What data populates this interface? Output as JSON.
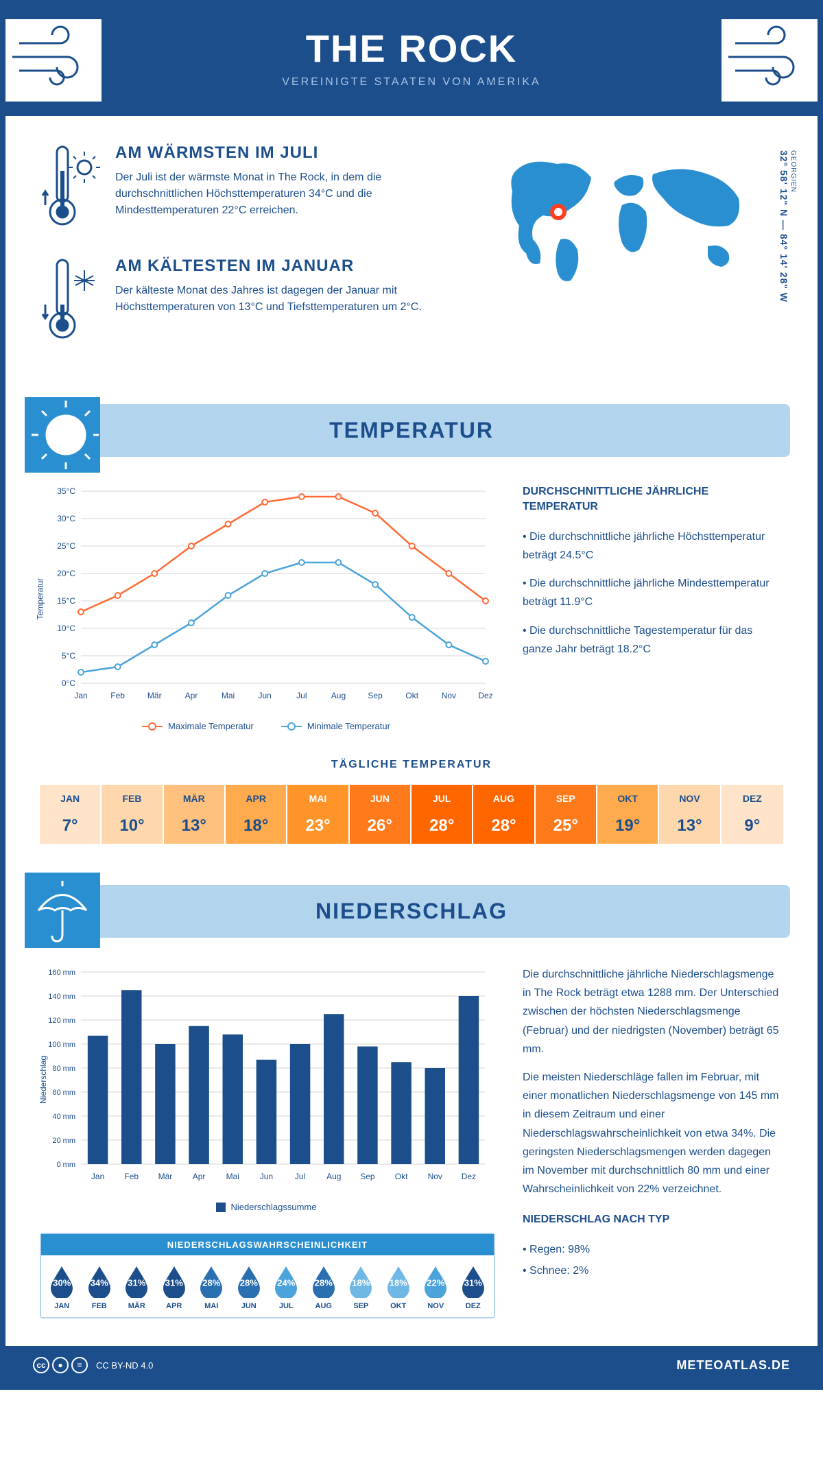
{
  "header": {
    "title": "THE ROCK",
    "subtitle": "VEREINIGTE STAATEN VON AMERIKA"
  },
  "colors": {
    "primary": "#1c4e8c",
    "light_blue": "#b3d4ed",
    "mid_blue": "#2a8fd0",
    "accent_blue": "#4ba3db",
    "orange": "#ff6b35",
    "chart_line_high": "#ff6b35",
    "chart_line_low": "#4ba3db",
    "bar": "#1c4e8c",
    "grid": "#d5d5d5"
  },
  "coords": {
    "region": "GEORGIEN",
    "text": "32° 58' 12\" N — 84° 14' 28\" W"
  },
  "facts": {
    "warm": {
      "title": "AM WÄRMSTEN IM JULI",
      "text": "Der Juli ist der wärmste Monat in The Rock, in dem die durchschnittlichen Höchsttemperaturen 34°C und die Mindesttemperaturen 22°C erreichen."
    },
    "cold": {
      "title": "AM KÄLTESTEN IM JANUAR",
      "text": "Der kälteste Monat des Jahres ist dagegen der Januar mit Höchsttemperaturen von 13°C und Tiefsttemperaturen um 2°C."
    }
  },
  "months": [
    "Jan",
    "Feb",
    "Mär",
    "Apr",
    "Mai",
    "Jun",
    "Jul",
    "Aug",
    "Sep",
    "Okt",
    "Nov",
    "Dez"
  ],
  "months_upper": [
    "JAN",
    "FEB",
    "MÄR",
    "APR",
    "MAI",
    "JUN",
    "JUL",
    "AUG",
    "SEP",
    "OKT",
    "NOV",
    "DEZ"
  ],
  "temp_section": {
    "title": "TEMPERATUR",
    "y_label": "Temperatur",
    "chart": {
      "type": "line",
      "ylim": [
        0,
        35
      ],
      "ytick_step": 5,
      "y_ticks": [
        "0°C",
        "5°C",
        "10°C",
        "15°C",
        "20°C",
        "25°C",
        "30°C",
        "35°C"
      ],
      "max": [
        13,
        16,
        20,
        25,
        29,
        33,
        34,
        34,
        31,
        25,
        20,
        15
      ],
      "min": [
        2,
        3,
        7,
        11,
        16,
        20,
        22,
        22,
        18,
        12,
        7,
        4
      ],
      "legend_max": "Maximale Temperatur",
      "legend_min": "Minimale Temperatur"
    },
    "side": {
      "title": "DURCHSCHNITTLICHE JÄHRLICHE TEMPERATUR",
      "b1": "• Die durchschnittliche jährliche Höchsttemperatur beträgt 24.5°C",
      "b2": "• Die durchschnittliche jährliche Mindesttemperatur beträgt 11.9°C",
      "b3": "• Die durchschnittliche Tagestemperatur für das ganze Jahr beträgt 18.2°C"
    },
    "daily": {
      "title": "TÄGLICHE TEMPERATUR",
      "values": [
        "7°",
        "10°",
        "13°",
        "18°",
        "23°",
        "26°",
        "28°",
        "28°",
        "25°",
        "19°",
        "13°",
        "9°"
      ],
      "bg_colors": [
        "#ffe4c9",
        "#ffd7ad",
        "#ffc17d",
        "#ffab4d",
        "#ff9429",
        "#ff7a1a",
        "#ff6600",
        "#ff6600",
        "#ff7a1a",
        "#ffab4d",
        "#ffd7ad",
        "#ffe4c9"
      ],
      "text_colors": [
        "#1c4e8c",
        "#1c4e8c",
        "#1c4e8c",
        "#1c4e8c",
        "#fff",
        "#fff",
        "#fff",
        "#fff",
        "#fff",
        "#1c4e8c",
        "#1c4e8c",
        "#1c4e8c"
      ]
    }
  },
  "precip_section": {
    "title": "NIEDERSCHLAG",
    "y_label": "Niederschlag",
    "chart": {
      "type": "bar",
      "ylim": [
        0,
        160
      ],
      "ytick_step": 20,
      "y_ticks": [
        "0 mm",
        "20 mm",
        "40 mm",
        "60 mm",
        "80 mm",
        "100 mm",
        "120 mm",
        "140 mm",
        "160 mm"
      ],
      "values": [
        107,
        145,
        100,
        115,
        108,
        87,
        100,
        125,
        98,
        85,
        80,
        140
      ],
      "legend": "Niederschlagssumme"
    },
    "text1": "Die durchschnittliche jährliche Niederschlagsmenge in The Rock beträgt etwa 1288 mm. Der Unterschied zwischen der höchsten Niederschlagsmenge (Februar) und der niedrigsten (November) beträgt 65 mm.",
    "text2": "Die meisten Niederschläge fallen im Februar, mit einer monatlichen Niederschlagsmenge von 145 mm in diesem Zeitraum und einer Niederschlagswahrscheinlichkeit von etwa 34%. Die geringsten Niederschlagsmengen werden dagegen im November mit durchschnittlich 80 mm und einer Wahrscheinlichkeit von 22% verzeichnet.",
    "by_type_title": "NIEDERSCHLAG NACH TYP",
    "by_type_1": "• Regen: 98%",
    "by_type_2": "• Schnee: 2%",
    "prob": {
      "title": "NIEDERSCHLAGSWAHRSCHEINLICHKEIT",
      "values": [
        "30%",
        "34%",
        "31%",
        "31%",
        "28%",
        "28%",
        "24%",
        "28%",
        "18%",
        "18%",
        "22%",
        "31%"
      ],
      "colors": [
        "#1c4e8c",
        "#1c4e8c",
        "#1c4e8c",
        "#1c4e8c",
        "#2a6fb0",
        "#2a6fb0",
        "#4ba3db",
        "#2a6fb0",
        "#6fb8e5",
        "#6fb8e5",
        "#4ba3db",
        "#1c4e8c"
      ]
    }
  },
  "footer": {
    "license": "CC BY-ND 4.0",
    "site": "METEOATLAS.DE"
  }
}
